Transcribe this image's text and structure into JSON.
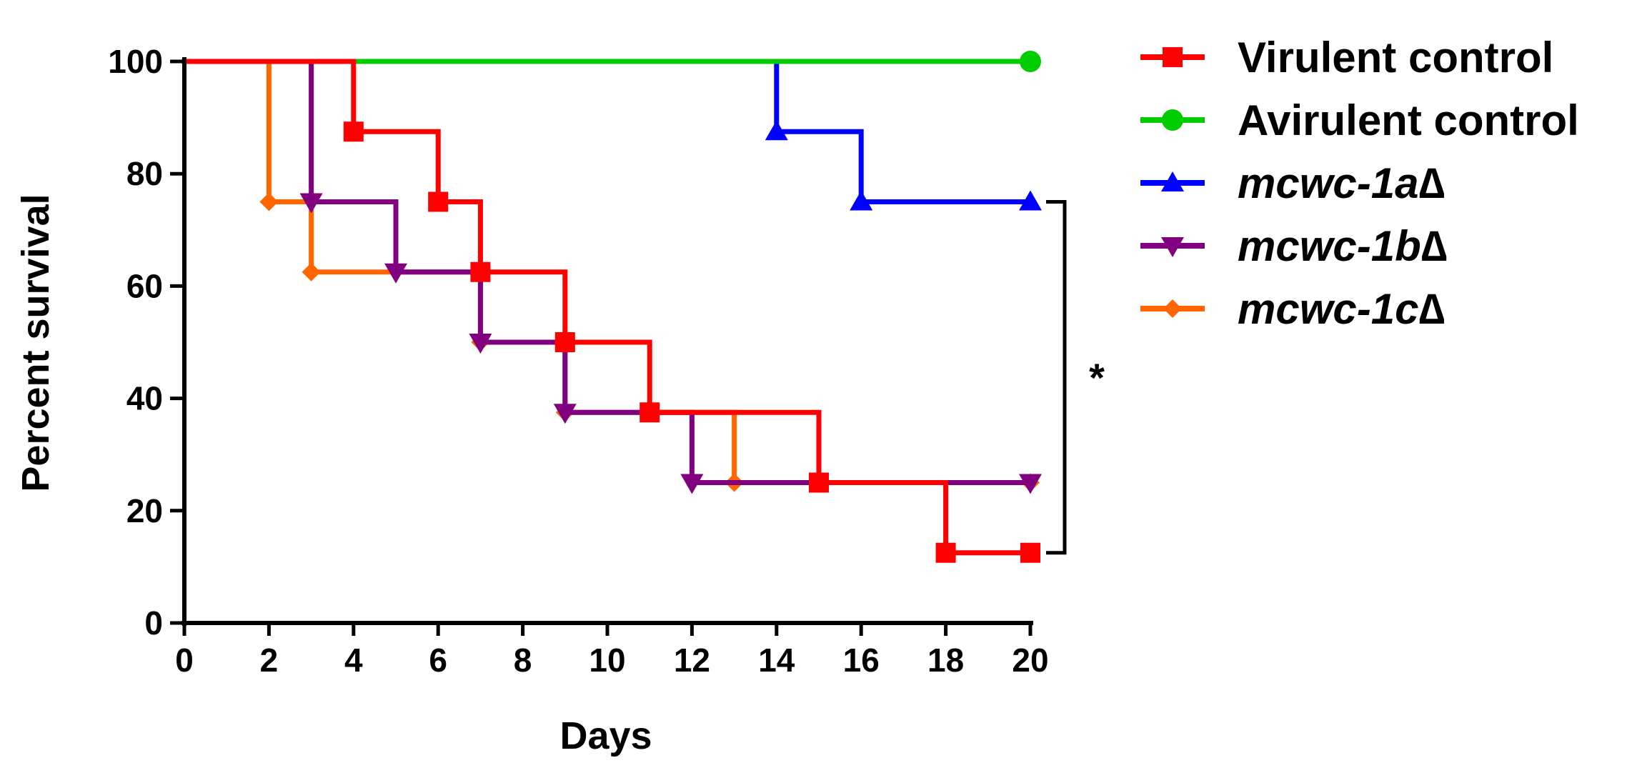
{
  "chart_data": {
    "type": "line",
    "subtype": "kaplan-meier-survival",
    "title": "",
    "xlabel": "Days",
    "ylabel": "Percent survival",
    "xlim": [
      0,
      20
    ],
    "ylim": [
      0,
      100
    ],
    "xticks": [
      "0",
      "2",
      "4",
      "6",
      "8",
      "10",
      "12",
      "14",
      "16",
      "18",
      "20"
    ],
    "yticks": [
      "0",
      "20",
      "40",
      "60",
      "80",
      "100"
    ],
    "grid": false,
    "legend_position": "right",
    "series": [
      {
        "name": "Virulent control",
        "italic": false,
        "color": "#ff0000",
        "marker": "square",
        "steps": [
          [
            0,
            100
          ],
          [
            4,
            87.5
          ],
          [
            6,
            75
          ],
          [
            7,
            62.5
          ],
          [
            9,
            50
          ],
          [
            11,
            37.5
          ],
          [
            15,
            25
          ],
          [
            18,
            12.5
          ],
          [
            20,
            12.5
          ]
        ],
        "markers": [
          [
            4,
            87.5
          ],
          [
            6,
            75
          ],
          [
            7,
            62.5
          ],
          [
            9,
            50
          ],
          [
            11,
            37.5
          ],
          [
            15,
            25
          ],
          [
            18,
            12.5
          ],
          [
            20,
            12.5
          ]
        ]
      },
      {
        "name": "Avirulent control",
        "italic": false,
        "color": "#00cc00",
        "marker": "circle",
        "steps": [
          [
            0,
            100
          ],
          [
            20,
            100
          ]
        ],
        "markers": [
          [
            20,
            100
          ]
        ]
      },
      {
        "name": "mcwc-1a∆",
        "italic": true,
        "color": "#0000ff",
        "marker": "triangle-up",
        "steps": [
          [
            0,
            100
          ],
          [
            14,
            87.5
          ],
          [
            16,
            75
          ],
          [
            20,
            75
          ]
        ],
        "markers": [
          [
            14,
            87.5
          ],
          [
            16,
            75
          ],
          [
            20,
            75
          ]
        ]
      },
      {
        "name": "mcwc-1b∆",
        "italic": true,
        "color": "#800080",
        "marker": "triangle-down",
        "steps": [
          [
            0,
            100
          ],
          [
            3,
            75
          ],
          [
            5,
            62.5
          ],
          [
            7,
            50
          ],
          [
            9,
            37.5
          ],
          [
            12,
            25
          ],
          [
            20,
            25
          ]
        ],
        "markers": [
          [
            3,
            75
          ],
          [
            5,
            62.5
          ],
          [
            7,
            50
          ],
          [
            9,
            37.5
          ],
          [
            12,
            25
          ],
          [
            20,
            25
          ]
        ]
      },
      {
        "name": "mcwc-1c∆",
        "italic": true,
        "color": "#ff6600",
        "marker": "diamond",
        "steps": [
          [
            0,
            100
          ],
          [
            2,
            75
          ],
          [
            3,
            62.5
          ],
          [
            7,
            50
          ],
          [
            9,
            37.5
          ],
          [
            13,
            25
          ],
          [
            20,
            25
          ]
        ],
        "markers": [
          [
            2,
            75
          ],
          [
            3,
            62.5
          ],
          [
            7,
            50
          ],
          [
            9,
            37.5
          ],
          [
            13,
            25
          ],
          [
            20,
            25
          ]
        ]
      }
    ],
    "annotations": [
      {
        "type": "significance-bracket",
        "label": "*",
        "from_y": 12.5,
        "to_y": 75,
        "x": 20
      }
    ]
  }
}
